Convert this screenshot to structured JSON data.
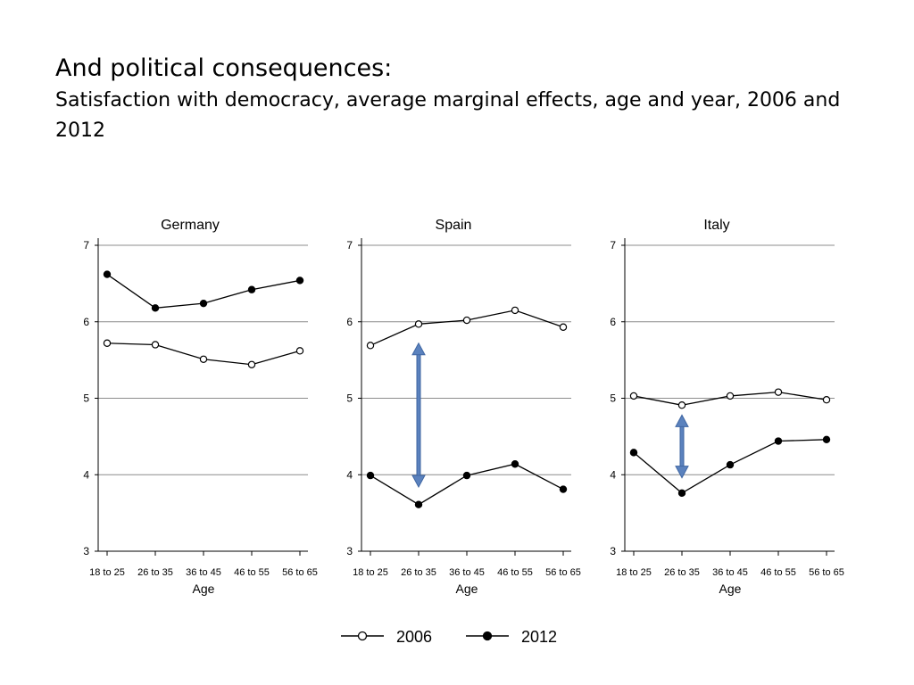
{
  "slide": {
    "title": "And political consequences:",
    "subtitle": "Satisfaction with democracy, average marginal effects, age and year, 2006 and 2012"
  },
  "chart_data": {
    "type": "line",
    "categories": [
      "18 to 25",
      "26 to 35",
      "36 to 45",
      "46 to 55",
      "56 to 65"
    ],
    "xlabel": "Age",
    "ylabel": "",
    "ylim": [
      3,
      7
    ],
    "yticks": [
      "3",
      "4",
      "5",
      "6",
      "7"
    ],
    "grid": true,
    "legend_position": "bottom-center",
    "legend": [
      {
        "name": "2006",
        "marker": "hollow-circle"
      },
      {
        "name": "2012",
        "marker": "filled-circle"
      }
    ],
    "panels": [
      {
        "name": "Germany",
        "series": [
          {
            "name": "2006",
            "values": [
              5.72,
              5.7,
              5.51,
              5.44,
              5.62
            ]
          },
          {
            "name": "2012",
            "values": [
              6.62,
              6.18,
              6.24,
              6.42,
              6.54
            ]
          }
        ],
        "annotation": null
      },
      {
        "name": "Spain",
        "series": [
          {
            "name": "2006",
            "values": [
              5.69,
              5.97,
              6.02,
              6.15,
              5.93
            ]
          },
          {
            "name": "2012",
            "values": [
              3.99,
              3.61,
              3.99,
              4.14,
              3.81
            ]
          }
        ],
        "annotation": {
          "type": "double-arrow",
          "category": "26 to 35",
          "from": 3.84,
          "to": 5.72
        }
      },
      {
        "name": "Italy",
        "series": [
          {
            "name": "2006",
            "values": [
              5.03,
              4.91,
              5.03,
              5.08,
              4.98
            ]
          },
          {
            "name": "2012",
            "values": [
              4.29,
              3.76,
              4.13,
              4.44,
              4.46
            ]
          }
        ],
        "annotation": {
          "type": "double-arrow",
          "category": "26 to 35",
          "from": 3.96,
          "to": 4.78
        }
      }
    ],
    "colors": {
      "line": "#000000",
      "grid": "#8c8c8c",
      "arrow": "#5b82be",
      "arrow_stroke": "#3f66a2"
    }
  }
}
